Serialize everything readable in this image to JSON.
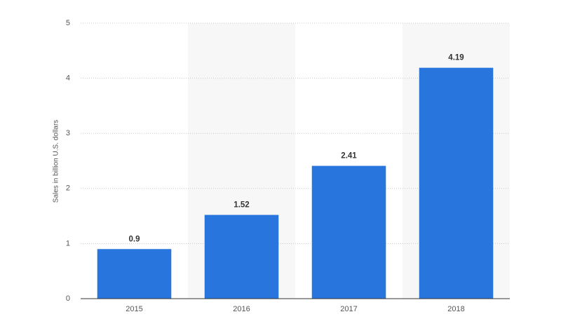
{
  "chart_data": {
    "type": "bar",
    "y_label": "Sales in billion U.S. dollars",
    "categories": [
      "2015",
      "2016",
      "2017",
      "2018"
    ],
    "values": [
      0.9,
      1.52,
      2.41,
      4.19
    ],
    "color": "#2876dd",
    "ylim": [
      0,
      5
    ],
    "yticks": [
      0,
      1,
      2,
      3,
      4,
      5
    ],
    "grid": true
  }
}
